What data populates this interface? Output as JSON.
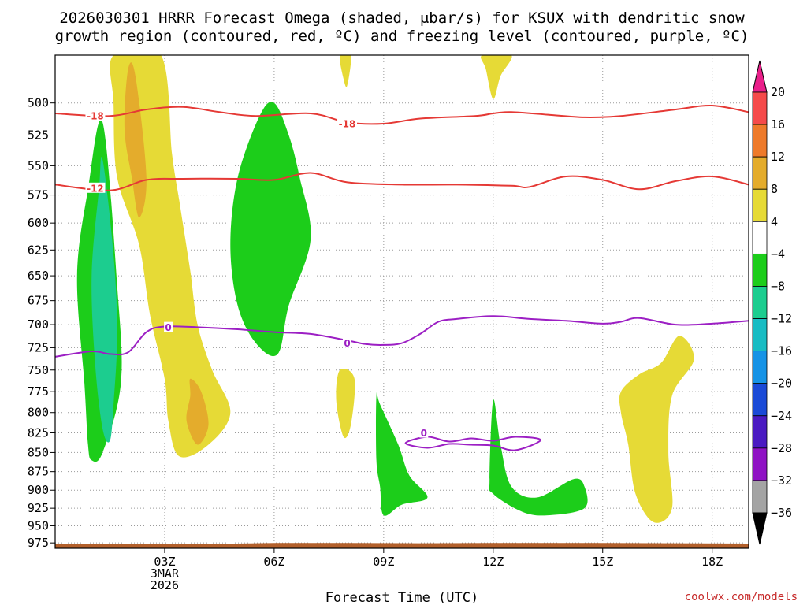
{
  "chart_data": {
    "type": "heatmap",
    "title_line1": "2026030301 HRRR Forecast Omega (shaded, μbar/s) for KSUX with dendritic snow",
    "title_line2": "growth region (contoured, red, ºC) and freezing level (contoured, purple, ºC)",
    "xlabel": "Forecast Time (UTC)",
    "credit": "coolwx.com/models",
    "x_ticks": [
      {
        "t": 3,
        "label": "03Z",
        "sub1": "3MAR",
        "sub2": "2026"
      },
      {
        "t": 6,
        "label": "06Z"
      },
      {
        "t": 9,
        "label": "09Z"
      },
      {
        "t": 12,
        "label": "12Z"
      },
      {
        "t": 15,
        "label": "15Z"
      },
      {
        "t": 18,
        "label": "18Z"
      }
    ],
    "xlim": [
      0,
      19
    ],
    "y_ticks": [
      500,
      525,
      550,
      575,
      600,
      625,
      650,
      675,
      700,
      725,
      750,
      775,
      800,
      825,
      850,
      875,
      900,
      925,
      950,
      975
    ],
    "ylim": [
      983,
      465
    ],
    "y_scale": "log-pressure",
    "grid": true,
    "colorbar": {
      "levels": [
        "20",
        "16",
        "12",
        "8",
        "4",
        "−4",
        "−8",
        "−12",
        "−16",
        "−20",
        "−24",
        "−28",
        "−32",
        "−36"
      ],
      "colors": [
        "#f54a4a",
        "#ee7a2a",
        "#e4ac2c",
        "#e6da36",
        "#ffffff",
        "#1ccd1a",
        "#1ccd8f",
        "#18bcc3",
        "#1693e6",
        "#1a4ad7",
        "#4a1ac2",
        "#8f12c4",
        "#a4a4a4"
      ],
      "top_cap": "#ea1f8a",
      "bottom_cap": "#000000"
    },
    "omega_regions": [
      {
        "color": "#e6da36",
        "pts": [
          [
            1.6,
            465
          ],
          [
            2.9,
            465
          ],
          [
            3.2,
            540
          ],
          [
            3.4,
            580
          ],
          [
            3.7,
            645
          ],
          [
            3.9,
            700
          ],
          [
            4.3,
            750
          ],
          [
            4.8,
            800
          ],
          [
            4.2,
            840
          ],
          [
            3.4,
            855
          ],
          [
            3.1,
            810
          ],
          [
            3.0,
            760
          ],
          [
            2.6,
            690
          ],
          [
            2.3,
            620
          ],
          [
            1.7,
            560
          ],
          [
            1.6,
            500
          ]
        ]
      },
      {
        "color": "#e4ac2c",
        "pts": [
          [
            2.0,
            475
          ],
          [
            2.2,
            480
          ],
          [
            2.5,
            560
          ],
          [
            2.3,
            595
          ],
          [
            2.1,
            560
          ],
          [
            1.9,
            520
          ]
        ]
      },
      {
        "color": "#e4ac2c",
        "pts": [
          [
            3.7,
            760
          ],
          [
            4.0,
            775
          ],
          [
            4.2,
            815
          ],
          [
            3.9,
            840
          ],
          [
            3.6,
            810
          ],
          [
            3.7,
            780
          ]
        ]
      },
      {
        "color": "#e6da36",
        "pts": [
          [
            7.8,
            750
          ],
          [
            8.2,
            760
          ],
          [
            8.1,
            815
          ],
          [
            7.9,
            830
          ],
          [
            7.7,
            785
          ]
        ]
      },
      {
        "color": "#e6da36",
        "pts": [
          [
            7.8,
            465
          ],
          [
            8.1,
            465
          ],
          [
            8.0,
            487
          ],
          [
            7.9,
            482
          ]
        ]
      },
      {
        "color": "#e6da36",
        "pts": [
          [
            11.7,
            465
          ],
          [
            12.5,
            465
          ],
          [
            12.2,
            480
          ],
          [
            12.0,
            497
          ],
          [
            11.8,
            475
          ]
        ]
      },
      {
        "color": "#e6da36",
        "pts": [
          [
            15.5,
            775
          ],
          [
            16.0,
            755
          ],
          [
            16.6,
            742
          ],
          [
            17.1,
            712
          ],
          [
            17.5,
            738
          ],
          [
            16.9,
            780
          ],
          [
            16.8,
            850
          ],
          [
            16.9,
            925
          ],
          [
            16.4,
            945
          ],
          [
            15.9,
            905
          ],
          [
            15.7,
            840
          ],
          [
            15.5,
            800
          ]
        ]
      },
      {
        "color": "#1ccd1a",
        "pts": [
          [
            1.0,
            860
          ],
          [
            1.3,
            850
          ],
          [
            1.8,
            765
          ],
          [
            1.7,
            660
          ],
          [
            1.3,
            515
          ],
          [
            0.9,
            570
          ],
          [
            0.6,
            650
          ],
          [
            0.8,
            765
          ],
          [
            0.9,
            840
          ]
        ]
      },
      {
        "color": "#1ccd8f",
        "pts": [
          [
            1.3,
            545
          ],
          [
            1.6,
            630
          ],
          [
            1.7,
            710
          ],
          [
            1.6,
            790
          ],
          [
            1.5,
            835
          ],
          [
            1.3,
            820
          ],
          [
            1.1,
            745
          ],
          [
            1.0,
            650
          ],
          [
            1.2,
            570
          ]
        ]
      },
      {
        "color": "#1ccd1a",
        "pts": [
          [
            5.0,
            560
          ],
          [
            5.6,
            510
          ],
          [
            6.0,
            500
          ],
          [
            6.4,
            525
          ],
          [
            6.7,
            560
          ],
          [
            7.0,
            615
          ],
          [
            6.4,
            680
          ],
          [
            6.1,
            732
          ],
          [
            5.5,
            720
          ],
          [
            5.0,
            680
          ],
          [
            4.8,
            620
          ]
        ]
      },
      {
        "color": "#1ccd1a",
        "pts": [
          [
            8.8,
            780
          ],
          [
            8.9,
            790
          ],
          [
            9.4,
            840
          ],
          [
            9.7,
            880
          ],
          [
            10.2,
            910
          ],
          [
            9.5,
            920
          ],
          [
            9.0,
            935
          ],
          [
            8.9,
            895
          ],
          [
            8.8,
            860
          ]
        ]
      },
      {
        "color": "#1ccd1a",
        "pts": [
          [
            11.9,
            885
          ],
          [
            12.0,
            785
          ],
          [
            12.2,
            840
          ],
          [
            12.5,
            895
          ],
          [
            13.2,
            910
          ],
          [
            14.2,
            885
          ],
          [
            14.5,
            895
          ],
          [
            14.5,
            925
          ],
          [
            13.5,
            935
          ],
          [
            12.8,
            930
          ],
          [
            12.0,
            905
          ]
        ]
      }
    ],
    "dgz_contours": [
      {
        "label": "-18",
        "label_at": [
          [
            1.1,
            510
          ],
          [
            8.0,
            516
          ]
        ],
        "pts": [
          [
            0,
            508
          ],
          [
            1.5,
            510
          ],
          [
            2.5,
            505
          ],
          [
            3.5,
            503
          ],
          [
            4.5,
            507
          ],
          [
            5.5,
            510
          ],
          [
            7.0,
            508
          ],
          [
            8.0,
            515
          ],
          [
            9.0,
            516
          ],
          [
            10.0,
            512
          ],
          [
            11.5,
            510
          ],
          [
            12.0,
            508
          ],
          [
            12.5,
            507
          ],
          [
            13.5,
            509
          ],
          [
            14.5,
            511
          ],
          [
            15.5,
            510
          ],
          [
            17.0,
            505
          ],
          [
            18.0,
            502
          ],
          [
            19.0,
            507
          ]
        ]
      },
      {
        "label": "-12",
        "label_at": [
          [
            1.1,
            569
          ]
        ],
        "pts": [
          [
            0,
            566
          ],
          [
            1.5,
            571
          ],
          [
            2.5,
            562
          ],
          [
            3.5,
            561
          ],
          [
            5.0,
            561
          ],
          [
            6.0,
            562
          ],
          [
            7.0,
            556
          ],
          [
            8.0,
            564
          ],
          [
            9.5,
            566
          ],
          [
            11.0,
            566
          ],
          [
            12.5,
            567
          ],
          [
            13.0,
            568
          ],
          [
            14.0,
            559
          ],
          [
            15.0,
            562
          ],
          [
            16.0,
            570
          ],
          [
            17.0,
            563
          ],
          [
            18.0,
            559
          ],
          [
            19.0,
            566
          ]
        ]
      }
    ],
    "freezing_contours": [
      {
        "label": "0",
        "label_at": [
          [
            3.1,
            703
          ],
          [
            8.0,
            720
          ]
        ],
        "pts": [
          [
            0,
            735
          ],
          [
            1.0,
            729
          ],
          [
            1.5,
            732
          ],
          [
            2.0,
            730
          ],
          [
            2.5,
            708
          ],
          [
            3.0,
            702
          ],
          [
            4.0,
            703
          ],
          [
            5.0,
            705
          ],
          [
            6.0,
            708
          ],
          [
            7.0,
            710
          ],
          [
            8.0,
            717
          ],
          [
            8.5,
            721
          ],
          [
            9.0,
            722
          ],
          [
            9.5,
            720
          ],
          [
            10.0,
            710
          ],
          [
            10.5,
            697
          ],
          [
            11.0,
            694
          ],
          [
            12.0,
            691
          ],
          [
            13.0,
            694
          ],
          [
            14.0,
            696
          ],
          [
            15.0,
            699
          ],
          [
            15.5,
            697
          ],
          [
            16.0,
            693
          ],
          [
            17.0,
            700
          ],
          [
            18.0,
            699
          ],
          [
            19.0,
            696
          ]
        ]
      },
      {
        "label": "0",
        "label_at": [
          [
            10.1,
            825
          ]
        ],
        "closed": true,
        "pts": [
          [
            9.6,
            838
          ],
          [
            10.2,
            830
          ],
          [
            10.8,
            836
          ],
          [
            11.4,
            832
          ],
          [
            12.0,
            835
          ],
          [
            12.6,
            830
          ],
          [
            13.3,
            834
          ],
          [
            12.6,
            847
          ],
          [
            12.0,
            841
          ],
          [
            11.4,
            840
          ],
          [
            10.8,
            839
          ],
          [
            10.2,
            844
          ]
        ]
      }
    ],
    "terrain_color": "#b3602b",
    "terrain": [
      [
        0,
        977
      ],
      [
        4.0,
        977
      ],
      [
        5.0,
        976
      ],
      [
        6.0,
        975
      ],
      [
        8.0,
        975
      ],
      [
        10.0,
        975.5
      ],
      [
        12.0,
        975
      ],
      [
        15.0,
        975.2
      ],
      [
        17.0,
        975.5
      ],
      [
        19.0,
        976
      ]
    ]
  }
}
